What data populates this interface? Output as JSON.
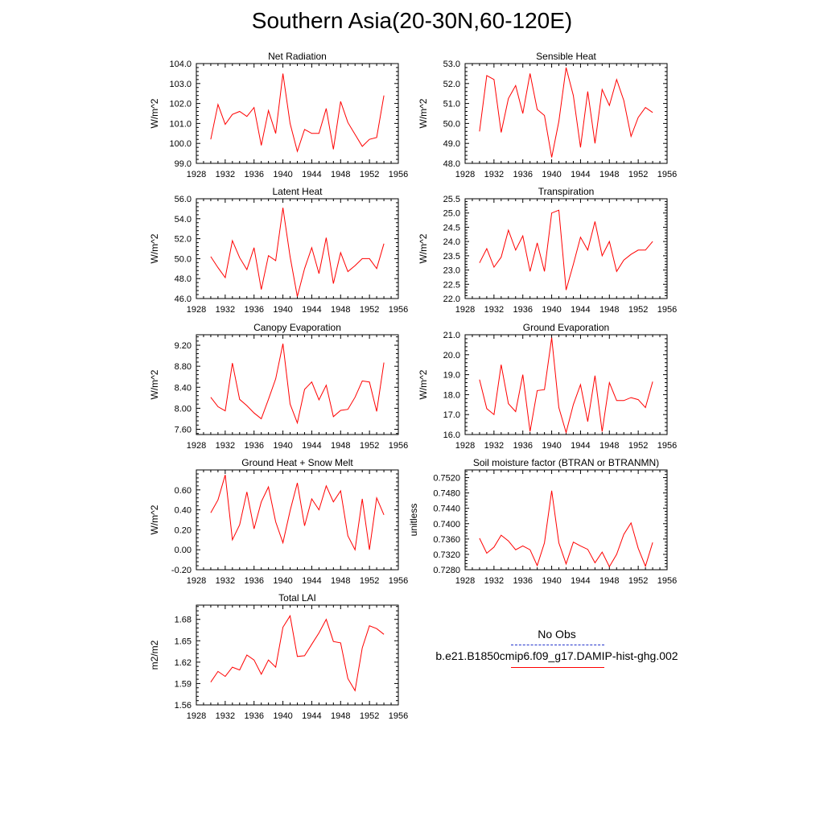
{
  "title": "Southern Asia(20-30N,60-120E)",
  "series_color": "#ff0000",
  "obs_color": "#2233cc",
  "legend": {
    "obs_label": "No Obs",
    "model_label": "b.e21.B1850cmip6.f09_g17.DAMIP-hist-ghg.002"
  },
  "chart_data": [
    {
      "type": "line",
      "title": "Net Radiation",
      "xlabel": "",
      "ylabel": "W/m^2",
      "xlim": [
        1928,
        1956
      ],
      "xticks": [
        1928,
        1932,
        1936,
        1940,
        1944,
        1948,
        1952,
        1956
      ],
      "ylim": [
        99.0,
        104.0
      ],
      "yticks": [
        99.0,
        100.0,
        101.0,
        102.0,
        103.0,
        104.0
      ],
      "ydecimals": 1,
      "x": [
        1930,
        1931,
        1932,
        1933,
        1934,
        1935,
        1936,
        1937,
        1938,
        1939,
        1940,
        1941,
        1942,
        1943,
        1944,
        1945,
        1946,
        1947,
        1948,
        1949,
        1950,
        1951,
        1952,
        1953,
        1954
      ],
      "y": [
        100.2,
        101.95,
        100.95,
        101.45,
        101.6,
        101.35,
        101.8,
        99.9,
        101.65,
        100.5,
        103.5,
        101.0,
        99.6,
        100.7,
        100.5,
        100.5,
        101.75,
        99.7,
        102.1,
        101.05,
        100.45,
        99.85,
        100.2,
        100.3,
        102.4
      ]
    },
    {
      "type": "line",
      "title": "Sensible Heat",
      "xlabel": "",
      "ylabel": "W/m^2",
      "xlim": [
        1928,
        1956
      ],
      "xticks": [
        1928,
        1932,
        1936,
        1940,
        1944,
        1948,
        1952,
        1956
      ],
      "ylim": [
        48.0,
        53.0
      ],
      "yticks": [
        48.0,
        49.0,
        50.0,
        51.0,
        52.0,
        53.0
      ],
      "ydecimals": 1,
      "x": [
        1930,
        1931,
        1932,
        1933,
        1934,
        1935,
        1936,
        1937,
        1938,
        1939,
        1940,
        1941,
        1942,
        1943,
        1944,
        1945,
        1946,
        1947,
        1948,
        1949,
        1950,
        1951,
        1952,
        1953,
        1954
      ],
      "y": [
        49.6,
        52.4,
        52.2,
        49.55,
        51.25,
        51.9,
        50.5,
        52.5,
        50.7,
        50.4,
        48.3,
        50.1,
        52.8,
        51.4,
        48.8,
        51.6,
        49.0,
        51.7,
        50.9,
        52.2,
        51.15,
        49.35,
        50.3,
        50.8,
        50.55
      ]
    },
    {
      "type": "line",
      "title": "Latent Heat",
      "xlabel": "",
      "ylabel": "W/m^2",
      "xlim": [
        1928,
        1956
      ],
      "xticks": [
        1928,
        1932,
        1936,
        1940,
        1944,
        1948,
        1952,
        1956
      ],
      "ylim": [
        46.0,
        56.0
      ],
      "yticks": [
        46.0,
        48.0,
        50.0,
        52.0,
        54.0,
        56.0
      ],
      "ydecimals": 1,
      "x": [
        1930,
        1931,
        1932,
        1933,
        1934,
        1935,
        1936,
        1937,
        1938,
        1939,
        1940,
        1941,
        1942,
        1943,
        1944,
        1945,
        1946,
        1947,
        1948,
        1949,
        1950,
        1951,
        1952,
        1953,
        1954
      ],
      "y": [
        50.2,
        49.1,
        48.1,
        51.8,
        50.1,
        48.9,
        51.1,
        46.9,
        50.3,
        49.8,
        55.1,
        50.2,
        46.2,
        49.0,
        51.1,
        48.5,
        52.1,
        47.5,
        50.6,
        48.7,
        49.3,
        50.0,
        50.0,
        49.0,
        51.5
      ]
    },
    {
      "type": "line",
      "title": "Transpiration",
      "xlabel": "",
      "ylabel": "W/m^2",
      "xlim": [
        1928,
        1956
      ],
      "xticks": [
        1928,
        1932,
        1936,
        1940,
        1944,
        1948,
        1952,
        1956
      ],
      "ylim": [
        22.0,
        25.5
      ],
      "yticks": [
        22.0,
        22.5,
        23.0,
        23.5,
        24.0,
        24.5,
        25.0,
        25.5
      ],
      "ydecimals": 1,
      "x": [
        1930,
        1931,
        1932,
        1933,
        1934,
        1935,
        1936,
        1937,
        1938,
        1939,
        1940,
        1941,
        1942,
        1943,
        1944,
        1945,
        1946,
        1947,
        1948,
        1949,
        1950,
        1951,
        1952,
        1953,
        1954
      ],
      "y": [
        23.25,
        23.75,
        23.1,
        23.45,
        24.4,
        23.7,
        24.2,
        22.95,
        23.95,
        22.95,
        25.0,
        25.1,
        22.3,
        23.2,
        24.15,
        23.7,
        24.7,
        23.5,
        24.0,
        22.95,
        23.35,
        23.55,
        23.7,
        23.7,
        24.0
      ]
    },
    {
      "type": "line",
      "title": "Canopy Evaporation",
      "xlabel": "",
      "ylabel": "W/m^2",
      "xlim": [
        1928,
        1956
      ],
      "xticks": [
        1928,
        1932,
        1936,
        1940,
        1944,
        1948,
        1952,
        1956
      ],
      "ylim": [
        7.5,
        9.4
      ],
      "yticks": [
        7.6,
        8.0,
        8.4,
        8.8,
        9.2
      ],
      "ydecimals": 2,
      "x": [
        1930,
        1931,
        1932,
        1933,
        1934,
        1935,
        1936,
        1937,
        1938,
        1939,
        1940,
        1941,
        1942,
        1943,
        1944,
        1945,
        1946,
        1947,
        1948,
        1949,
        1950,
        1951,
        1952,
        1953,
        1954
      ],
      "y": [
        8.21,
        8.03,
        7.95,
        8.86,
        8.17,
        8.05,
        7.91,
        7.8,
        8.17,
        8.56,
        9.23,
        8.08,
        7.72,
        8.36,
        8.5,
        8.16,
        8.44,
        7.84,
        7.96,
        7.98,
        8.21,
        8.52,
        8.5,
        7.94,
        8.87
      ]
    },
    {
      "type": "line",
      "title": "Ground Evaporation",
      "xlabel": "",
      "ylabel": "W/m^2",
      "xlim": [
        1928,
        1956
      ],
      "xticks": [
        1928,
        1932,
        1936,
        1940,
        1944,
        1948,
        1952,
        1956
      ],
      "ylim": [
        16.0,
        21.0
      ],
      "yticks": [
        16.0,
        17.0,
        18.0,
        19.0,
        20.0,
        21.0
      ],
      "ydecimals": 1,
      "x": [
        1930,
        1931,
        1932,
        1933,
        1934,
        1935,
        1936,
        1937,
        1938,
        1939,
        1940,
        1941,
        1942,
        1943,
        1944,
        1945,
        1946,
        1947,
        1948,
        1949,
        1950,
        1951,
        1952,
        1953,
        1954
      ],
      "y": [
        18.75,
        17.3,
        17.0,
        19.5,
        17.55,
        17.15,
        19.0,
        16.15,
        18.2,
        18.25,
        20.85,
        17.35,
        16.1,
        17.5,
        18.5,
        16.65,
        18.95,
        16.15,
        18.6,
        17.7,
        17.7,
        17.85,
        17.75,
        17.35,
        18.65
      ]
    },
    {
      "type": "line",
      "title": "Ground Heat + Snow Melt",
      "xlabel": "",
      "ylabel": "W/m^2",
      "xlim": [
        1928,
        1956
      ],
      "xticks": [
        1928,
        1932,
        1936,
        1940,
        1944,
        1948,
        1952,
        1956
      ],
      "ylim": [
        -0.2,
        0.8
      ],
      "yticks": [
        -0.2,
        0.0,
        0.2,
        0.4,
        0.6
      ],
      "ydecimals": 2,
      "x": [
        1930,
        1931,
        1932,
        1933,
        1934,
        1935,
        1936,
        1937,
        1938,
        1939,
        1940,
        1941,
        1942,
        1943,
        1944,
        1945,
        1946,
        1947,
        1948,
        1949,
        1950,
        1951,
        1952,
        1953,
        1954
      ],
      "y": [
        0.37,
        0.5,
        0.75,
        0.1,
        0.25,
        0.58,
        0.21,
        0.48,
        0.63,
        0.28,
        0.07,
        0.39,
        0.67,
        0.24,
        0.51,
        0.4,
        0.64,
        0.48,
        0.59,
        0.14,
        0.0,
        0.51,
        0.0,
        0.52,
        0.35
      ]
    },
    {
      "type": "line",
      "title": "Soil moisture factor (BTRAN or BTRANMN)",
      "xlabel": "",
      "ylabel": "unitless",
      "xlim": [
        1928,
        1956
      ],
      "xticks": [
        1928,
        1932,
        1936,
        1940,
        1944,
        1948,
        1952,
        1956
      ],
      "ylim": [
        0.728,
        0.754
      ],
      "yticks": [
        0.728,
        0.732,
        0.736,
        0.74,
        0.744,
        0.748,
        0.752
      ],
      "ydecimals": 4,
      "x": [
        1930,
        1931,
        1932,
        1933,
        1934,
        1935,
        1936,
        1937,
        1938,
        1939,
        1940,
        1941,
        1942,
        1943,
        1944,
        1945,
        1946,
        1947,
        1948,
        1949,
        1950,
        1951,
        1952,
        1953,
        1954
      ],
      "y": [
        0.7362,
        0.7323,
        0.7339,
        0.737,
        0.7355,
        0.7332,
        0.7342,
        0.7332,
        0.7291,
        0.735,
        0.7486,
        0.735,
        0.7295,
        0.7352,
        0.7342,
        0.7333,
        0.7298,
        0.7326,
        0.7288,
        0.732,
        0.7372,
        0.7402,
        0.7336,
        0.7289,
        0.7351
      ]
    },
    {
      "type": "line",
      "title": "Total LAI",
      "xlabel": "",
      "ylabel": "m2/m2",
      "xlim": [
        1928,
        1956
      ],
      "xticks": [
        1928,
        1932,
        1936,
        1940,
        1944,
        1948,
        1952,
        1956
      ],
      "ylim": [
        1.56,
        1.7
      ],
      "yticks": [
        1.56,
        1.59,
        1.62,
        1.65,
        1.68
      ],
      "ydecimals": 2,
      "x": [
        1930,
        1931,
        1932,
        1933,
        1934,
        1935,
        1936,
        1937,
        1938,
        1939,
        1940,
        1941,
        1942,
        1943,
        1944,
        1945,
        1946,
        1947,
        1948,
        1949,
        1950,
        1951,
        1952,
        1953,
        1954
      ],
      "y": [
        1.592,
        1.607,
        1.6,
        1.613,
        1.609,
        1.63,
        1.623,
        1.603,
        1.623,
        1.613,
        1.669,
        1.685,
        1.628,
        1.629,
        1.645,
        1.661,
        1.68,
        1.649,
        1.647,
        1.597,
        1.58,
        1.64,
        1.671,
        1.667,
        1.659
      ]
    }
  ]
}
